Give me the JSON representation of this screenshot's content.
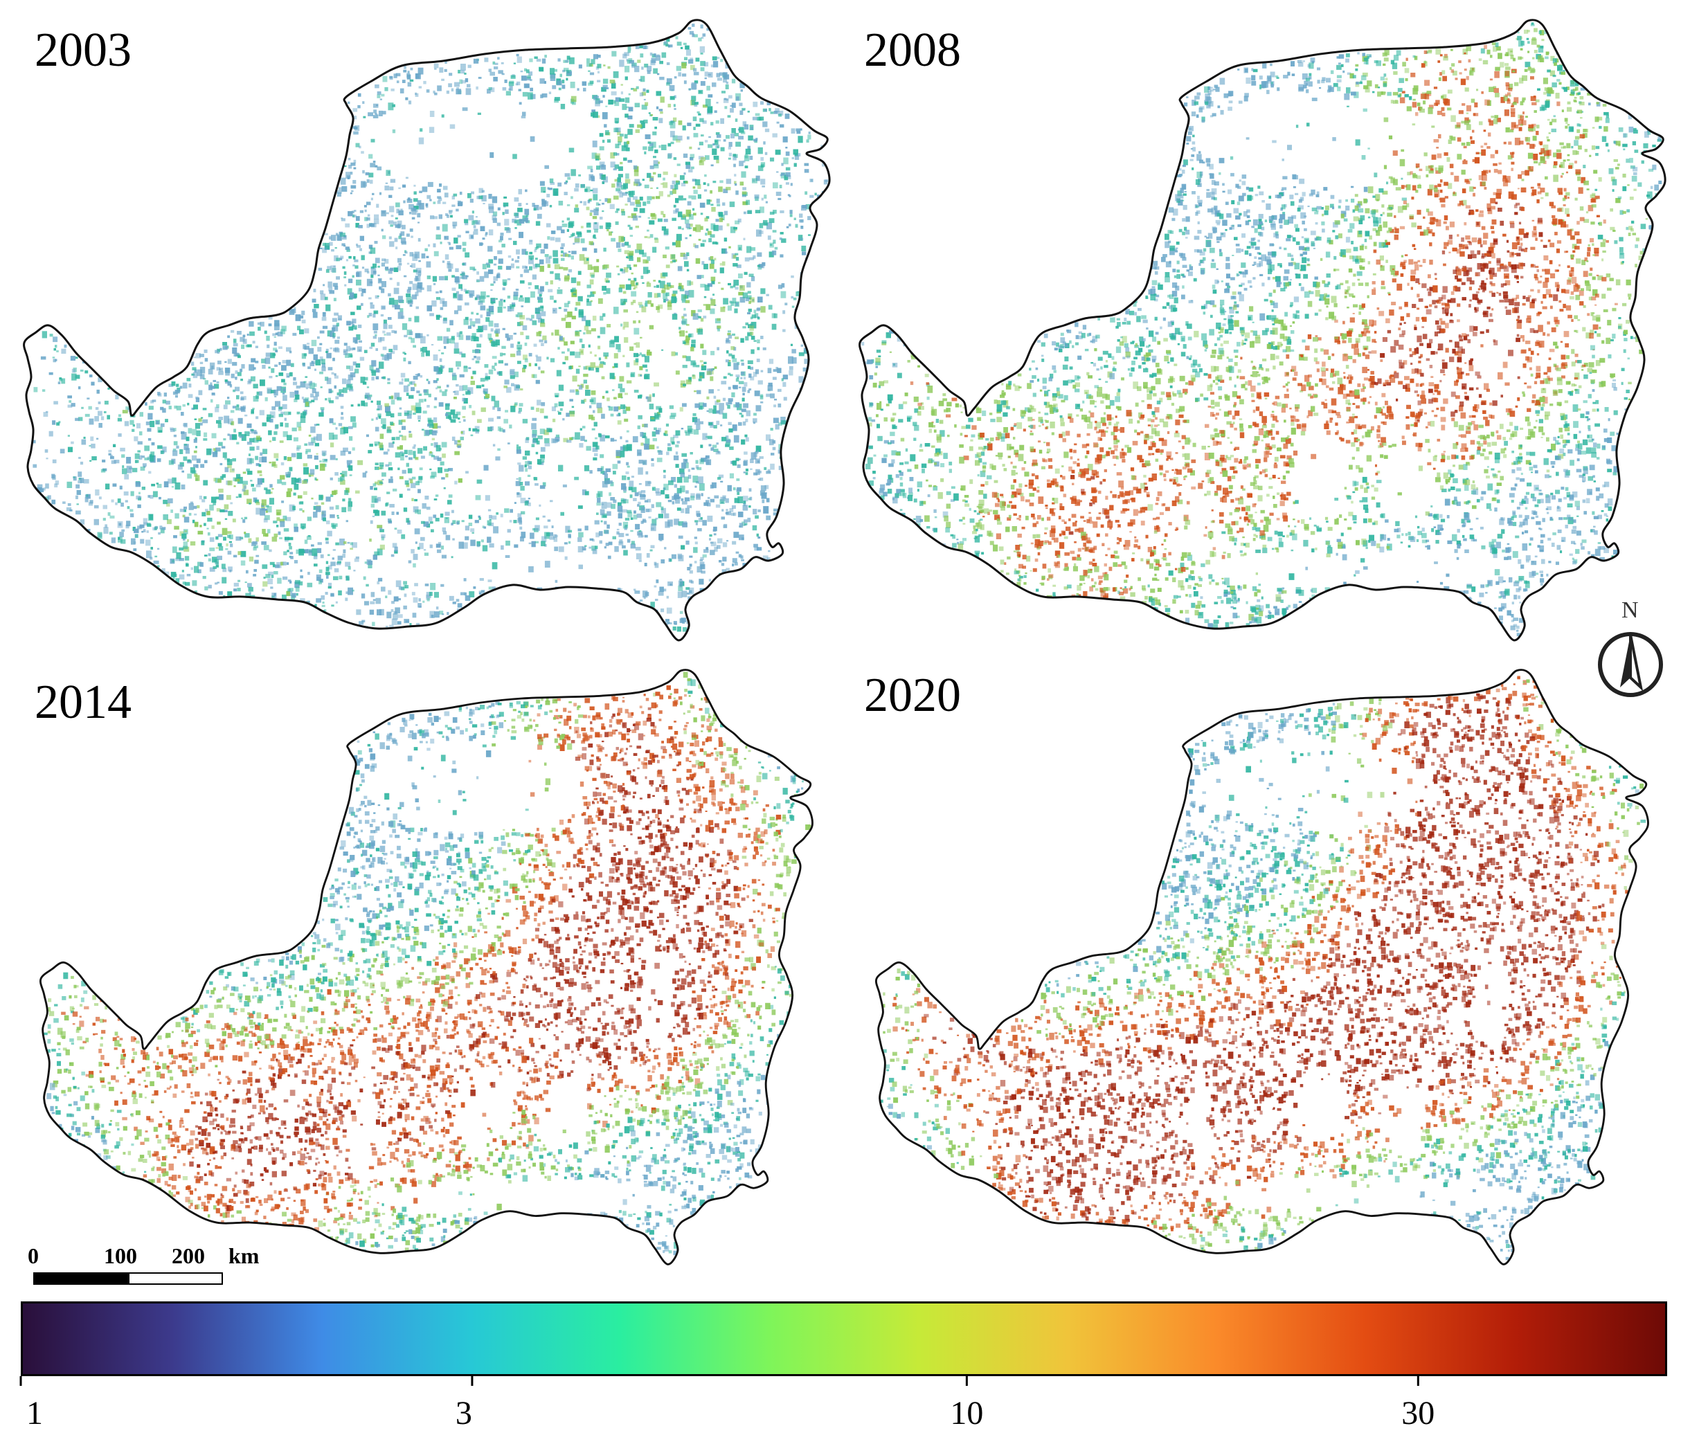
{
  "panels": [
    {
      "year": "2003",
      "intensity": 0.15
    },
    {
      "year": "2008",
      "intensity": 0.45
    },
    {
      "year": "2014",
      "intensity": 0.65
    },
    {
      "year": "2020",
      "intensity": 0.85
    }
  ],
  "scalebar": {
    "labels": [
      "0",
      "100",
      "200"
    ],
    "unit": "km"
  },
  "colorbar": {
    "ticks": [
      "1",
      "3",
      "10",
      "30"
    ],
    "tick_values": [
      1,
      3,
      10,
      30
    ],
    "scale": "log",
    "range": [
      1,
      55
    ],
    "colors": [
      "#2a0f3a",
      "#3c3a8c",
      "#3f8be6",
      "#27c8d6",
      "#2aeea0",
      "#7ef55a",
      "#c6ea38",
      "#f0c43a",
      "#fa8a2a",
      "#e34c12",
      "#b21d08",
      "#6e0a06"
    ]
  },
  "north_arrow": {
    "letter": "N"
  },
  "map_colors": {
    "boundary": "#111111",
    "low": "#6aa7c9",
    "mid": "#2fb5a0",
    "green": "#8cc95a",
    "high": "#d2531c",
    "very_high": "#a32812"
  }
}
